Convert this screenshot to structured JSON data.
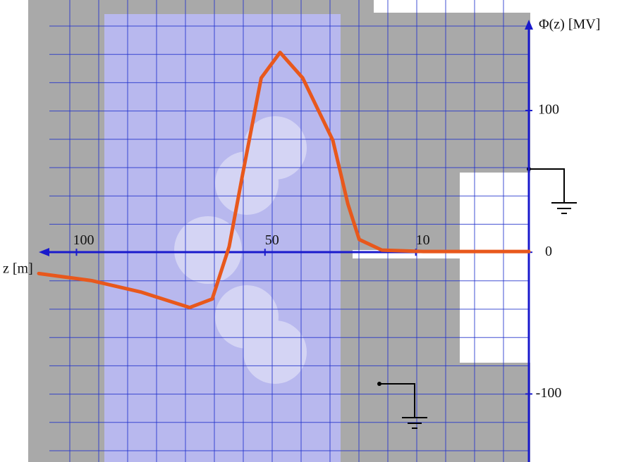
{
  "chart_data": {
    "type": "line",
    "x_label": "z [m]",
    "y_label": "Φ(z) [MV]",
    "xlim": [
      -20,
      110
    ],
    "ylim": [
      -148,
      178
    ],
    "xticks": [
      10,
      50,
      100
    ],
    "yticks": [
      -100,
      0,
      100
    ],
    "x_reversed": true,
    "series": [
      {
        "color": "#e8581c",
        "x": [
          110,
          96,
          83,
          70,
          64,
          59.5,
          56,
          51,
          46,
          40,
          32,
          28,
          25,
          19,
          8,
          -20
        ],
        "values": [
          -15,
          -20,
          -28,
          -39,
          -33,
          4,
          54,
          123,
          141,
          123,
          79,
          34,
          9,
          1.5,
          0.5,
          0.5
        ]
      }
    ]
  }
}
